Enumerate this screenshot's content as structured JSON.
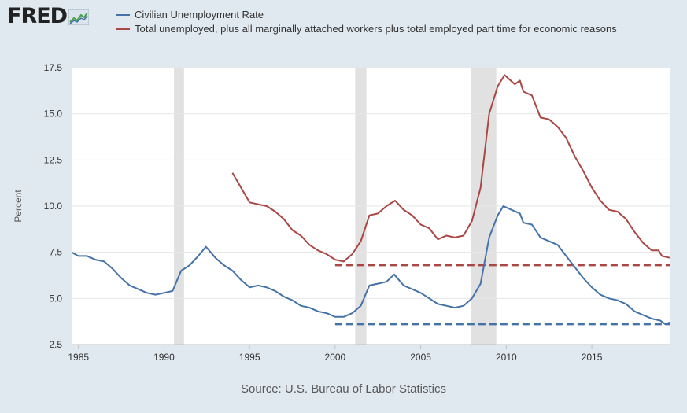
{
  "logo": {
    "text": "FRED",
    "icon": "fred-chart-icon"
  },
  "legend": [
    {
      "label": "Civilian Unemployment Rate",
      "color": "#4572a7"
    },
    {
      "label": "Total unemployed, plus all marginally attached workers plus total employed part time for economic reasons",
      "color": "#aa4643"
    }
  ],
  "source": "Source: U.S. Bureau of Labor Statistics",
  "chart_data": {
    "type": "line",
    "title": "",
    "xlabel": "",
    "ylabel": "Percent",
    "xlim": [
      1984.6,
      2019.55
    ],
    "ylim": [
      2.5,
      17.5
    ],
    "x_ticks": [
      "1985",
      "1990",
      "1995",
      "2000",
      "2005",
      "2010",
      "2015"
    ],
    "y_ticks": [
      "2.5",
      "5.0",
      "7.5",
      "10.0",
      "12.5",
      "15.0",
      "17.5"
    ],
    "grid": true,
    "legend_position": "top",
    "recessions": [
      [
        1990.58,
        1991.17
      ],
      [
        2001.17,
        2001.83
      ],
      [
        2007.92,
        2009.42
      ]
    ],
    "reference_lines": [
      {
        "y": 6.8,
        "x_start": 2000.0,
        "x_end": 2019.55,
        "color": "#aa4643",
        "style": "dashed"
      },
      {
        "y": 3.6,
        "x_start": 2000.0,
        "x_end": 2019.55,
        "color": "#4572a7",
        "style": "dashed"
      }
    ],
    "series": [
      {
        "name": "Civilian Unemployment Rate",
        "color": "#4572a7",
        "points": [
          [
            1984.6,
            7.5
          ],
          [
            1985,
            7.3
          ],
          [
            1985.5,
            7.3
          ],
          [
            1986,
            7.1
          ],
          [
            1986.5,
            7.0
          ],
          [
            1987,
            6.6
          ],
          [
            1987.5,
            6.1
          ],
          [
            1988,
            5.7
          ],
          [
            1988.5,
            5.5
          ],
          [
            1989,
            5.3
          ],
          [
            1989.5,
            5.2
          ],
          [
            1990,
            5.3
          ],
          [
            1990.5,
            5.4
          ],
          [
            1991,
            6.5
          ],
          [
            1991.5,
            6.8
          ],
          [
            1992,
            7.3
          ],
          [
            1992.45,
            7.8
          ],
          [
            1993,
            7.2
          ],
          [
            1993.5,
            6.8
          ],
          [
            1994,
            6.5
          ],
          [
            1994.5,
            6.0
          ],
          [
            1995,
            5.6
          ],
          [
            1995.5,
            5.7
          ],
          [
            1996,
            5.6
          ],
          [
            1996.5,
            5.4
          ],
          [
            1997,
            5.1
          ],
          [
            1997.5,
            4.9
          ],
          [
            1998,
            4.6
          ],
          [
            1998.5,
            4.5
          ],
          [
            1999,
            4.3
          ],
          [
            1999.5,
            4.2
          ],
          [
            2000,
            4.0
          ],
          [
            2000.5,
            4.0
          ],
          [
            2001,
            4.2
          ],
          [
            2001.5,
            4.6
          ],
          [
            2002,
            5.7
          ],
          [
            2002.5,
            5.8
          ],
          [
            2003,
            5.9
          ],
          [
            2003.45,
            6.3
          ],
          [
            2004,
            5.7
          ],
          [
            2004.5,
            5.5
          ],
          [
            2005,
            5.3
          ],
          [
            2005.5,
            5.0
          ],
          [
            2006,
            4.7
          ],
          [
            2006.5,
            4.6
          ],
          [
            2007,
            4.5
          ],
          [
            2007.5,
            4.6
          ],
          [
            2008,
            5.0
          ],
          [
            2008.5,
            5.8
          ],
          [
            2009,
            8.3
          ],
          [
            2009.5,
            9.5
          ],
          [
            2009.83,
            10.0
          ],
          [
            2010.3,
            9.8
          ],
          [
            2010.8,
            9.6
          ],
          [
            2011,
            9.1
          ],
          [
            2011.5,
            9.0
          ],
          [
            2012,
            8.3
          ],
          [
            2012.5,
            8.1
          ],
          [
            2013,
            7.9
          ],
          [
            2013.5,
            7.3
          ],
          [
            2014,
            6.7
          ],
          [
            2014.5,
            6.1
          ],
          [
            2015,
            5.6
          ],
          [
            2015.5,
            5.2
          ],
          [
            2016,
            5.0
          ],
          [
            2016.5,
            4.9
          ],
          [
            2017,
            4.7
          ],
          [
            2017.5,
            4.3
          ],
          [
            2018,
            4.1
          ],
          [
            2018.5,
            3.9
          ],
          [
            2019,
            3.8
          ],
          [
            2019.3,
            3.6
          ],
          [
            2019.55,
            3.7
          ]
        ]
      },
      {
        "name": "Total unemployed, plus all marginally attached workers plus total employed part time for economic reasons",
        "color": "#aa4643",
        "points": [
          [
            1994,
            11.8
          ],
          [
            1994.5,
            11.0
          ],
          [
            1995,
            10.2
          ],
          [
            1995.5,
            10.1
          ],
          [
            1996,
            10.0
          ],
          [
            1996.5,
            9.7
          ],
          [
            1997,
            9.3
          ],
          [
            1997.5,
            8.7
          ],
          [
            1998,
            8.4
          ],
          [
            1998.5,
            7.9
          ],
          [
            1999,
            7.6
          ],
          [
            1999.5,
            7.4
          ],
          [
            2000,
            7.1
          ],
          [
            2000.5,
            7.0
          ],
          [
            2001,
            7.4
          ],
          [
            2001.5,
            8.1
          ],
          [
            2002,
            9.5
          ],
          [
            2002.5,
            9.6
          ],
          [
            2003,
            10.0
          ],
          [
            2003.5,
            10.3
          ],
          [
            2004,
            9.8
          ],
          [
            2004.5,
            9.5
          ],
          [
            2005,
            9.0
          ],
          [
            2005.5,
            8.8
          ],
          [
            2006,
            8.2
          ],
          [
            2006.5,
            8.4
          ],
          [
            2007,
            8.3
          ],
          [
            2007.5,
            8.4
          ],
          [
            2008,
            9.2
          ],
          [
            2008.5,
            11.0
          ],
          [
            2009,
            15.0
          ],
          [
            2009.5,
            16.5
          ],
          [
            2009.9,
            17.1
          ],
          [
            2010.5,
            16.6
          ],
          [
            2010.8,
            16.8
          ],
          [
            2011,
            16.2
          ],
          [
            2011.5,
            16.0
          ],
          [
            2012,
            14.8
          ],
          [
            2012.5,
            14.7
          ],
          [
            2013,
            14.3
          ],
          [
            2013.5,
            13.7
          ],
          [
            2014,
            12.7
          ],
          [
            2014.5,
            11.9
          ],
          [
            2015,
            11.0
          ],
          [
            2015.5,
            10.3
          ],
          [
            2016,
            9.8
          ],
          [
            2016.5,
            9.7
          ],
          [
            2017,
            9.3
          ],
          [
            2017.5,
            8.6
          ],
          [
            2018,
            8.0
          ],
          [
            2018.5,
            7.6
          ],
          [
            2018.9,
            7.6
          ],
          [
            2019.1,
            7.3
          ],
          [
            2019.55,
            7.2
          ]
        ]
      }
    ]
  }
}
